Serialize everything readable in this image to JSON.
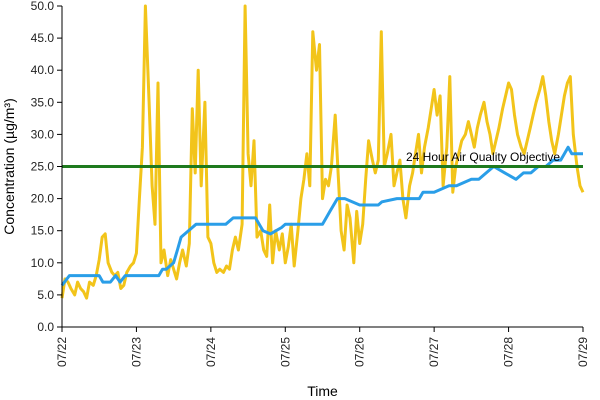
{
  "chart_data": {
    "type": "line",
    "xlabel": "Time",
    "ylabel": "Concentration (µg/m³)",
    "ylim": [
      0,
      50
    ],
    "xlim": [
      "07/22",
      "07/29"
    ],
    "x_ticks": [
      "07/22",
      "07/23",
      "07/24",
      "07/25",
      "07/26",
      "07/27",
      "07/28",
      "07/29"
    ],
    "y_ticks": [
      "0.0",
      "5.0",
      "10.0",
      "15.0",
      "20.0",
      "25.0",
      "30.0",
      "35.0",
      "40.0",
      "45.0",
      "50.0"
    ],
    "grid": false,
    "legend": "none",
    "annotations": [
      {
        "text": "24 Hour Air Quality Objective",
        "x": "07/28",
        "y": 26.5
      }
    ],
    "reference_line": {
      "y": 25,
      "color": "#1e7a1e"
    },
    "series": [
      {
        "color": "#f2c41a",
        "x": [
          0,
          0.04,
          0.08,
          0.12,
          0.17,
          0.21,
          0.25,
          0.29,
          0.33,
          0.37,
          0.42,
          0.46,
          0.5,
          0.54,
          0.58,
          0.62,
          0.67,
          0.71,
          0.75,
          0.79,
          0.83,
          0.87,
          0.92,
          0.96,
          1.0,
          1.04,
          1.08,
          1.12,
          1.17,
          1.21,
          1.25,
          1.29,
          1.33,
          1.37,
          1.42,
          1.46,
          1.5,
          1.54,
          1.58,
          1.62,
          1.67,
          1.71,
          1.75,
          1.79,
          1.83,
          1.87,
          1.92,
          1.96,
          2.0,
          2.04,
          2.08,
          2.12,
          2.17,
          2.21,
          2.25,
          2.29,
          2.33,
          2.37,
          2.42,
          2.46,
          2.5,
          2.54,
          2.58,
          2.62,
          2.67,
          2.71,
          2.75,
          2.79,
          2.83,
          2.87,
          2.92,
          2.96,
          3.0,
          3.04,
          3.08,
          3.12,
          3.17,
          3.21,
          3.25,
          3.29,
          3.33,
          3.37,
          3.42,
          3.46,
          3.5,
          3.54,
          3.58,
          3.62,
          3.67,
          3.71,
          3.75,
          3.79,
          3.83,
          3.87,
          3.92,
          3.96,
          4.0,
          4.04,
          4.08,
          4.12,
          4.17,
          4.21,
          4.25,
          4.29,
          4.33,
          4.37,
          4.42,
          4.46,
          4.5,
          4.54,
          4.58,
          4.62,
          4.67,
          4.71,
          4.75,
          4.79,
          4.83,
          4.87,
          4.92,
          4.96,
          5.0,
          5.04,
          5.08,
          5.12,
          5.17,
          5.21,
          5.25,
          5.29,
          5.33,
          5.37,
          5.42,
          5.46,
          5.5,
          5.54,
          5.58,
          5.62,
          5.67,
          5.71,
          5.75,
          5.79,
          5.83,
          5.87,
          5.92,
          5.96,
          6.0,
          6.04,
          6.08,
          6.12,
          6.17,
          6.21,
          6.25,
          6.29,
          6.33,
          6.37,
          6.42,
          6.46,
          6.5,
          6.54,
          6.58,
          6.62,
          6.67,
          6.71,
          6.75,
          6.79,
          6.83,
          6.87,
          6.92,
          6.96,
          7.0
        ],
        "values": [
          4.5,
          7.5,
          7.0,
          6.0,
          5.0,
          7.0,
          6.0,
          5.5,
          4.5,
          7.0,
          6.5,
          8.0,
          10.5,
          14.0,
          14.5,
          10.0,
          8.5,
          8.0,
          8.5,
          6.0,
          6.5,
          8.5,
          9.5,
          10.0,
          11.5,
          20.0,
          28.0,
          50.0,
          35.0,
          22.0,
          16.0,
          38.0,
          10.0,
          12.0,
          8.0,
          10.5,
          9.0,
          7.5,
          10.0,
          12.0,
          9.5,
          13.0,
          34.0,
          24.0,
          40.0,
          22.0,
          35.0,
          14.0,
          13.0,
          10.0,
          8.5,
          9.0,
          8.5,
          9.5,
          9.0,
          12.0,
          14.0,
          12.0,
          16.0,
          50.0,
          27.0,
          22.0,
          29.0,
          14.0,
          15.0,
          12.0,
          11.0,
          19.0,
          10.0,
          15.0,
          12.0,
          14.5,
          10.0,
          12.5,
          16.0,
          9.5,
          15.0,
          20.0,
          23.0,
          27.0,
          22.0,
          46.0,
          40.0,
          44.0,
          20.0,
          23.0,
          22.0,
          25.0,
          33.0,
          24.0,
          15.0,
          12.0,
          19.0,
          17.0,
          10.0,
          18.0,
          13.0,
          16.0,
          23.0,
          29.0,
          26.0,
          24.0,
          26.0,
          46.0,
          25.0,
          27.0,
          30.0,
          22.0,
          24.0,
          26.0,
          20.0,
          17.0,
          22.0,
          24.0,
          27.0,
          30.0,
          24.0,
          28.0,
          31.0,
          34.0,
          37.0,
          33.0,
          36.0,
          22.0,
          28.0,
          39.0,
          21.0,
          25.0,
          27.0,
          29.0,
          30.0,
          32.0,
          30.0,
          28.0,
          31.0,
          33.0,
          35.0,
          32.0,
          30.0,
          27.0,
          29.0,
          31.0,
          34.0,
          36.0,
          38.0,
          37.0,
          33.0,
          30.0,
          28.0,
          27.0,
          29.0,
          31.0,
          33.0,
          35.0,
          37.0,
          39.0,
          36.0,
          32.0,
          29.0,
          27.0,
          30.0,
          33.0,
          36.0,
          38.0,
          39.0,
          30.0,
          25.0,
          22.0,
          21.0
        ]
      },
      {
        "color": "#2a9ee8",
        "x": [
          0,
          0.1,
          0.2,
          0.5,
          0.55,
          0.65,
          0.72,
          0.78,
          0.85,
          1.0,
          1.3,
          1.35,
          1.4,
          1.5,
          1.55,
          1.6,
          1.7,
          1.8,
          2.0,
          2.2,
          2.3,
          2.4,
          2.6,
          2.7,
          2.8,
          2.95,
          3.0,
          3.2,
          3.5,
          3.55,
          3.6,
          3.7,
          3.8,
          4.0,
          4.2,
          4.25,
          4.3,
          4.5,
          4.6,
          4.8,
          4.85,
          5.0,
          5.2,
          5.3,
          5.5,
          5.6,
          5.7,
          5.8,
          5.95,
          6.1,
          6.2,
          6.3,
          6.4,
          6.5,
          6.6,
          6.7,
          6.75,
          6.8,
          6.85,
          6.95,
          7.0
        ],
        "values": [
          6.5,
          8.0,
          8.0,
          8.0,
          7.0,
          7.0,
          8.0,
          7.0,
          8.0,
          8.0,
          8.0,
          9.0,
          9.0,
          10.0,
          12.0,
          14.0,
          15.0,
          16.0,
          16.0,
          16.0,
          17.0,
          17.0,
          17.0,
          15.0,
          14.5,
          15.5,
          16.0,
          16.0,
          16.0,
          17.0,
          18.0,
          20.0,
          20.0,
          19.0,
          19.0,
          19.0,
          19.5,
          20.0,
          20.0,
          20.0,
          21.0,
          21.0,
          22.0,
          22.0,
          23.0,
          23.0,
          24.0,
          25.0,
          24.0,
          23.0,
          24.0,
          24.0,
          25.0,
          25.0,
          26.0,
          26.0,
          27.0,
          28.0,
          27.0,
          27.0,
          27.0
        ]
      }
    ]
  }
}
